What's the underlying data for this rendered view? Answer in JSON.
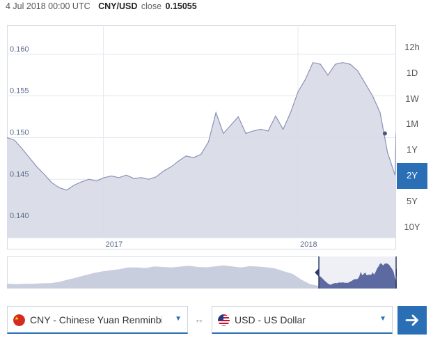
{
  "header": {
    "timestamp": "4 Jul 2018 00:00 UTC",
    "pair": "CNY/USD",
    "close_label": "close",
    "close_value": "0.15055"
  },
  "chart_data": {
    "type": "area",
    "ylim": [
      0.138,
      0.1635
    ],
    "y_ticks": [
      {
        "value": 0.16,
        "label": "0.160"
      },
      {
        "value": 0.155,
        "label": "0.155"
      },
      {
        "value": 0.15,
        "label": "0.150"
      },
      {
        "value": 0.145,
        "label": "0.145"
      },
      {
        "value": 0.14,
        "label": "0.140"
      }
    ],
    "x_ticks": [
      {
        "value": "2017-01-01",
        "label": "2017"
      },
      {
        "value": "2018-01-01",
        "label": "2018"
      }
    ],
    "x_range": [
      "2016-07-04",
      "2018-07-04"
    ],
    "series": [
      {
        "x": [
          "2016-07-04",
          "2016-07-18",
          "2016-08-01",
          "2016-08-15",
          "2016-08-29",
          "2016-09-12",
          "2016-09-26",
          "2016-10-10",
          "2016-10-24",
          "2016-11-07",
          "2016-11-21",
          "2016-12-05",
          "2016-12-19",
          "2017-01-02",
          "2017-01-16",
          "2017-01-30",
          "2017-02-13",
          "2017-02-27",
          "2017-03-13",
          "2017-03-27",
          "2017-04-10",
          "2017-04-24",
          "2017-05-08",
          "2017-05-22",
          "2017-06-05",
          "2017-06-19",
          "2017-07-03",
          "2017-07-17",
          "2017-07-31",
          "2017-08-14",
          "2017-08-28",
          "2017-09-11",
          "2017-09-25",
          "2017-10-09",
          "2017-10-23",
          "2017-11-06",
          "2017-11-20",
          "2017-12-04",
          "2017-12-18",
          "2018-01-01",
          "2018-01-15",
          "2018-01-29",
          "2018-02-12",
          "2018-02-26",
          "2018-03-12",
          "2018-03-26",
          "2018-04-09",
          "2018-04-23",
          "2018-05-07",
          "2018-05-21",
          "2018-06-04",
          "2018-06-18",
          "2018-07-02",
          "2018-07-04"
        ],
        "values": [
          0.15,
          0.1497,
          0.1487,
          0.1476,
          0.1465,
          0.1456,
          0.1446,
          0.144,
          0.1437,
          0.1443,
          0.1447,
          0.145,
          0.1448,
          0.1452,
          0.1454,
          0.1452,
          0.1455,
          0.1451,
          0.1452,
          0.145,
          0.1453,
          0.146,
          0.1465,
          0.1472,
          0.1478,
          0.1476,
          0.148,
          0.1495,
          0.153,
          0.1505,
          0.1515,
          0.1525,
          0.1505,
          0.1508,
          0.151,
          0.1508,
          0.1526,
          0.151,
          0.153,
          0.1555,
          0.157,
          0.159,
          0.1588,
          0.1575,
          0.1588,
          0.159,
          0.1588,
          0.158,
          0.1565,
          0.155,
          0.153,
          0.1482,
          0.1455,
          0.15055
        ]
      }
    ],
    "marker": {
      "x": "2018-06-13",
      "value": 0.1505
    }
  },
  "navigator": {
    "x_range": [
      "2008-07-04",
      "2018-07-04"
    ],
    "window": [
      "2016-07-04",
      "2018-07-04"
    ],
    "values": [
      0.1465,
      0.146,
      0.1464,
      0.1464,
      0.1468,
      0.147,
      0.148,
      0.15,
      0.152,
      0.154,
      0.156,
      0.1575,
      0.1585,
      0.1595,
      0.161,
      0.161,
      0.1605,
      0.162,
      0.1615,
      0.161,
      0.1618,
      0.1625,
      0.1615,
      0.1612,
      0.162,
      0.1628,
      0.162,
      0.161,
      0.1622,
      0.1618,
      0.1612,
      0.16,
      0.1575,
      0.1552,
      0.15,
      0.146,
      0.1445,
      0.1452,
      0.145,
      0.1468,
      0.1495,
      0.151,
      0.157,
      0.159,
      0.156,
      0.1508
    ]
  },
  "range_buttons": [
    "12h",
    "1D",
    "1W",
    "1M",
    "1Y",
    "2Y",
    "5Y",
    "10Y"
  ],
  "active_range": "2Y",
  "from_currency": {
    "label": "CNY - Chinese Yuan Renminbi",
    "flag": "cn-flag-icon"
  },
  "to_currency": {
    "label": "USD - US Dollar",
    "flag": "us-flag-icon"
  },
  "colors": {
    "accent": "#2a6fb6",
    "area": "#d7dae7",
    "area_line": "#8b91b6",
    "selected_nav": "#5d6aa2",
    "grid": "#d6dce6"
  }
}
